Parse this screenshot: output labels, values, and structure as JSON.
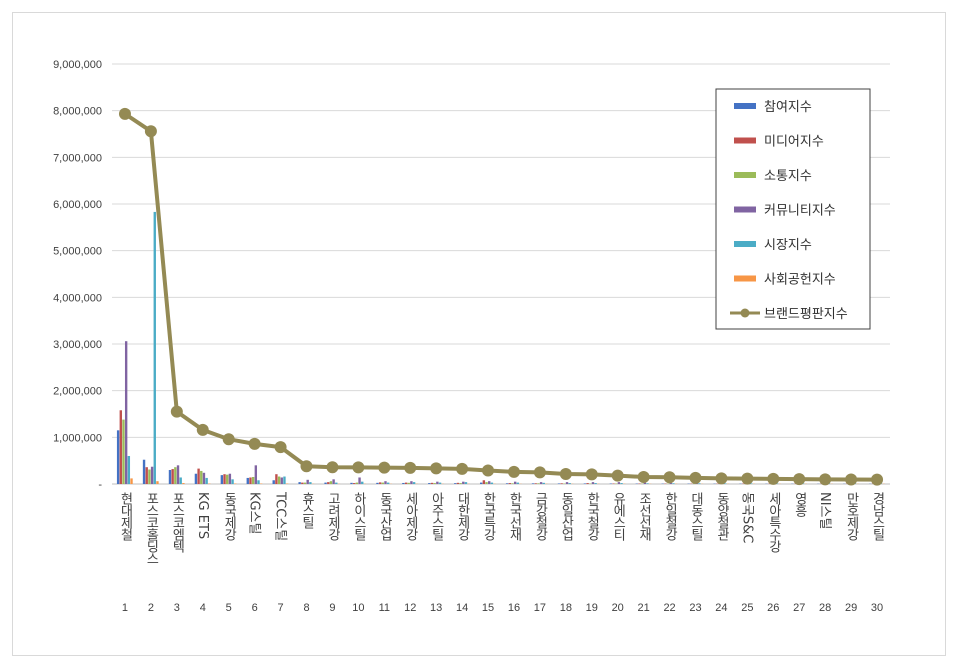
{
  "chart_data": {
    "type": "bar",
    "title": "",
    "xlabel": "",
    "ylabel": "",
    "ylim": [
      0,
      9000000
    ],
    "yticks": [
      "-",
      "1,000,000",
      "2,000,000",
      "3,000,000",
      "4,000,000",
      "5,000,000",
      "6,000,000",
      "7,000,000",
      "8,000,000",
      "9,000,000"
    ],
    "grid": true,
    "legend_position": "top-right",
    "categories": [
      "현대제철",
      "포스코홀딩스",
      "포스코엠텍",
      "KG ETS",
      "동국제강",
      "KG스틸",
      "TCC스틸",
      "휴스틸",
      "고려제강",
      "하이스틸",
      "동국산업",
      "세아제강",
      "아주스틸",
      "대한제강",
      "한국특강",
      "한국선재",
      "금강철강",
      "동일산업",
      "한국철강",
      "유에스티",
      "조선선재",
      "한일철강",
      "대동스틸",
      "동양철관",
      "동국S&C",
      "세아특수강",
      "영흥",
      "NI스틸",
      "만호제강",
      "경남스틸"
    ],
    "ranks": [
      "1",
      "2",
      "3",
      "4",
      "5",
      "6",
      "7",
      "8",
      "9",
      "10",
      "11",
      "12",
      "13",
      "14",
      "15",
      "16",
      "17",
      "18",
      "19",
      "20",
      "21",
      "22",
      "23",
      "24",
      "25",
      "26",
      "27",
      "28",
      "29",
      "30"
    ],
    "series": [
      {
        "name": "참여지수",
        "type": "bar",
        "color": "#4472c4",
        "values": [
          1150000,
          520000,
          300000,
          220000,
          190000,
          130000,
          80000,
          40000,
          30000,
          25000,
          25000,
          22000,
          20000,
          18000,
          30000,
          15000,
          14000,
          12000,
          12000,
          10000,
          9000,
          8000,
          8000,
          7000,
          7000,
          6000,
          6000,
          5000,
          5000,
          5000
        ]
      },
      {
        "name": "미디어지수",
        "type": "bar",
        "color": "#c0504d",
        "values": [
          1580000,
          360000,
          320000,
          330000,
          210000,
          140000,
          210000,
          30000,
          40000,
          20000,
          35000,
          30000,
          25000,
          25000,
          80000,
          20000,
          15000,
          15000,
          20000,
          10000,
          10000,
          8000,
          8000,
          7000,
          8000,
          6000,
          5000,
          5000,
          5000,
          5000
        ]
      },
      {
        "name": "소통지수",
        "type": "bar",
        "color": "#9bbb59",
        "values": [
          1380000,
          310000,
          360000,
          280000,
          200000,
          150000,
          160000,
          30000,
          60000,
          30000,
          30000,
          25000,
          20000,
          20000,
          40000,
          15000,
          15000,
          10000,
          10000,
          10000,
          8000,
          8000,
          7000,
          6000,
          6000,
          5000,
          5000,
          5000,
          5000,
          4000
        ]
      },
      {
        "name": "커뮤니티지수",
        "type": "bar",
        "color": "#8064a2",
        "values": [
          3060000,
          370000,
          400000,
          240000,
          220000,
          400000,
          140000,
          90000,
          100000,
          140000,
          60000,
          60000,
          50000,
          50000,
          60000,
          50000,
          40000,
          40000,
          40000,
          40000,
          30000,
          30000,
          30000,
          25000,
          25000,
          20000,
          20000,
          20000,
          20000,
          20000
        ]
      },
      {
        "name": "시장지수",
        "type": "bar",
        "color": "#4bacc6",
        "values": [
          600000,
          5830000,
          140000,
          130000,
          100000,
          80000,
          160000,
          40000,
          30000,
          50000,
          30000,
          40000,
          30000,
          40000,
          30000,
          30000,
          25000,
          20000,
          20000,
          20000,
          15000,
          15000,
          15000,
          12000,
          12000,
          10000,
          10000,
          10000,
          10000,
          10000
        ]
      },
      {
        "name": "사회공헌지수",
        "type": "bar",
        "color": "#f79646",
        "values": [
          120000,
          60000,
          20000,
          10000,
          10000,
          10000,
          10000,
          5000,
          5000,
          5000,
          5000,
          5000,
          5000,
          5000,
          5000,
          5000,
          5000,
          5000,
          5000,
          5000,
          5000,
          5000,
          5000,
          5000,
          5000,
          5000,
          5000,
          5000,
          5000,
          5000
        ]
      },
      {
        "name": "브랜드평판지수",
        "type": "line",
        "color": "#948a54",
        "values": [
          7930000,
          7560000,
          1550000,
          1160000,
          960000,
          860000,
          790000,
          380000,
          360000,
          355000,
          350000,
          345000,
          335000,
          325000,
          290000,
          260000,
          250000,
          215000,
          205000,
          180000,
          150000,
          145000,
          130000,
          120000,
          115000,
          110000,
          105000,
          100000,
          97000,
          95000
        ]
      }
    ]
  }
}
